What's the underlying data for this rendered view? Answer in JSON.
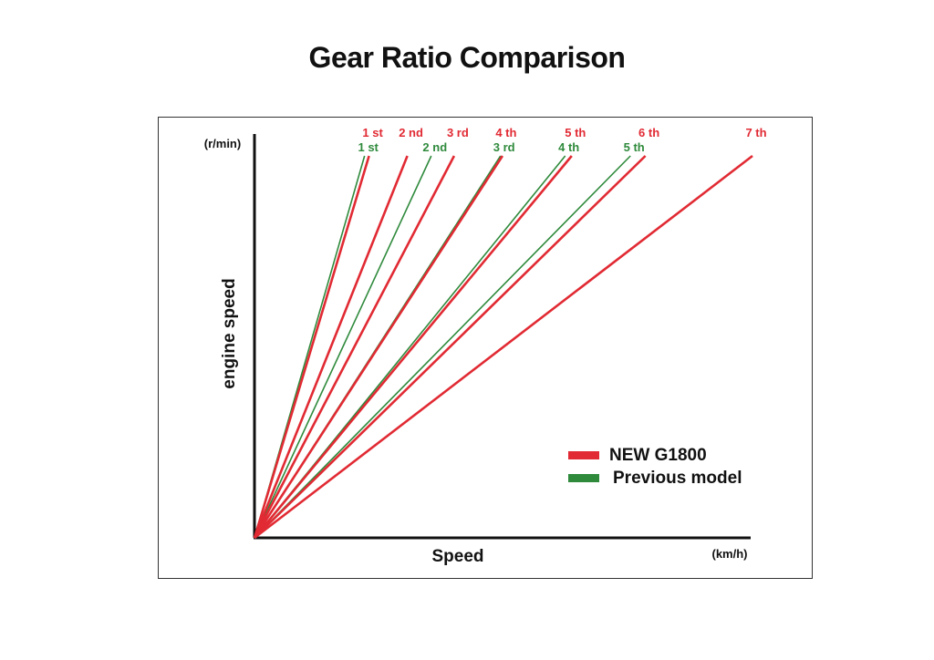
{
  "colors": {
    "new": "#e12a33",
    "previous": "#2f8a3c",
    "axis": "#111111"
  },
  "chart_data": {
    "type": "line",
    "title": "Gear Ratio Comparison",
    "ylabel": "engine speed",
    "yunit": "(r/min)",
    "xlabel": "Speed",
    "xunit": "(km/h)",
    "grid": false,
    "legend_position": "bottom-right",
    "series": [
      {
        "name": "NEW G1800",
        "color": "#e12a33",
        "lines": [
          {
            "label": "1 st",
            "x": 0.23
          },
          {
            "label": "2 nd",
            "x": 0.307
          },
          {
            "label": "3 rd",
            "x": 0.401
          },
          {
            "label": "4 th",
            "x": 0.498
          },
          {
            "label": "5 th",
            "x": 0.637
          },
          {
            "label": "6 th",
            "x": 0.785
          },
          {
            "label": "7 th",
            "x": 1.0
          }
        ]
      },
      {
        "name": "Previous model",
        "color": "#2f8a3c",
        "lines": [
          {
            "label": "1 st",
            "x": 0.221
          },
          {
            "label": "2 nd",
            "x": 0.355
          },
          {
            "label": "3 rd",
            "x": 0.494
          },
          {
            "label": "4 th",
            "x": 0.624
          },
          {
            "label": "5 th",
            "x": 0.755
          }
        ]
      }
    ]
  }
}
